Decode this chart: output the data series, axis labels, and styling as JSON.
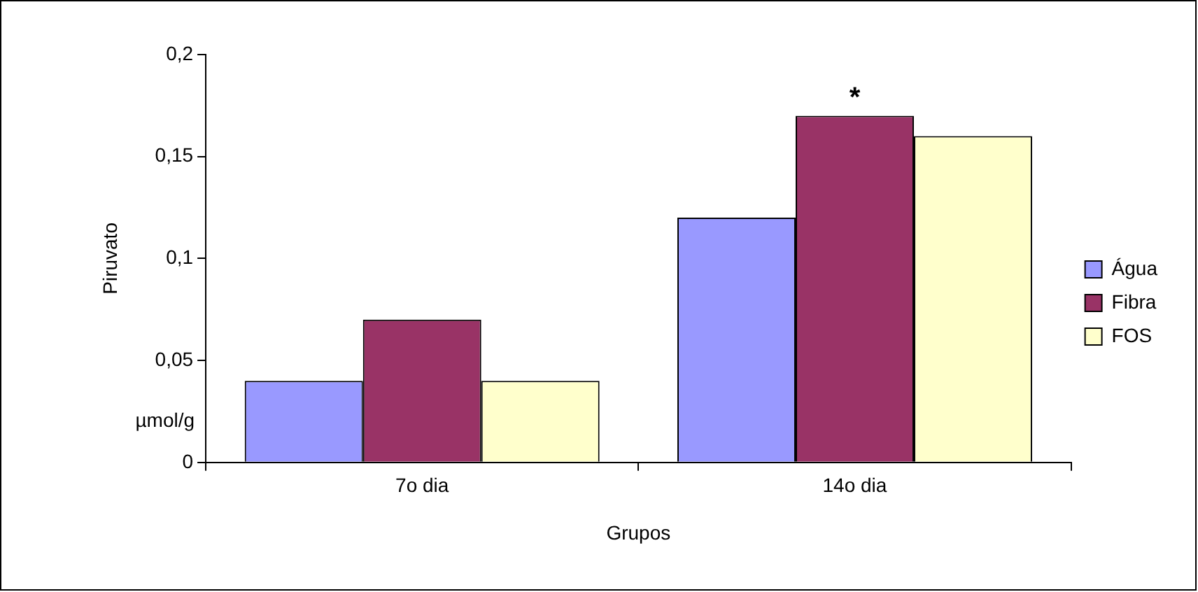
{
  "chart_data": {
    "type": "bar",
    "xlabel": "Grupos",
    "ylabel": "Piruvato",
    "categories": [
      "7o dia",
      "14o dia"
    ],
    "series": [
      {
        "name": "Água",
        "color": "#9999ff",
        "values": [
          0.04,
          0.12
        ]
      },
      {
        "name": "Fibra",
        "color": "#993366",
        "values": [
          0.07,
          0.17
        ]
      },
      {
        "name": "FOS",
        "color": "#ffffcc",
        "values": [
          0.04,
          0.16
        ]
      }
    ],
    "ylim": [
      0,
      0.2
    ],
    "yticks": [
      0,
      {
        "value": 0.05,
        "label": "0,05"
      },
      {
        "value": 0.1,
        "label": "0,1"
      },
      {
        "value": 0.15,
        "label": "0,15"
      },
      {
        "value": 0.2,
        "label": "0,2"
      }
    ],
    "annotations": [
      {
        "text": "*",
        "x": "14o dia",
        "y": 0.17
      },
      "µmol/g"
    ],
    "grid": false,
    "legend": "right"
  }
}
